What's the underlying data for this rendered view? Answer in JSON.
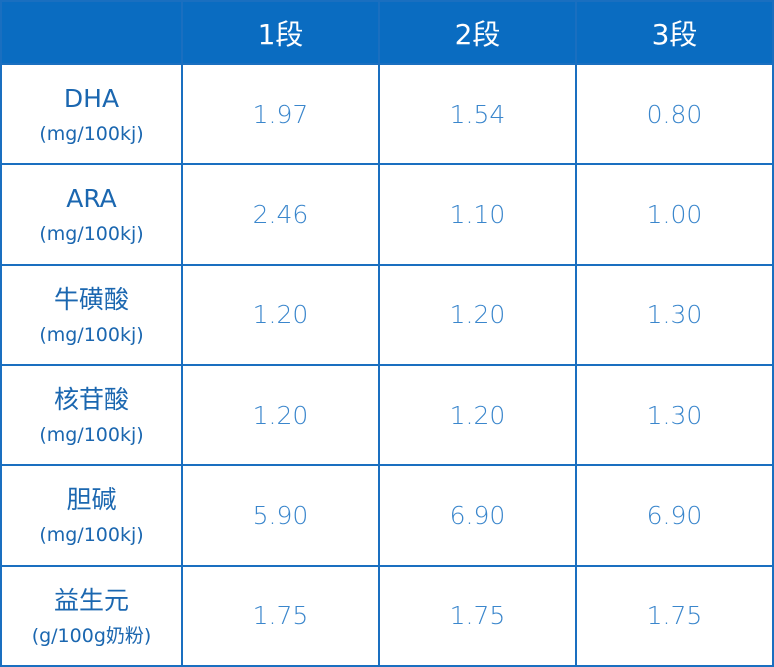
{
  "table": {
    "columns": [
      "1段",
      "2段",
      "3段"
    ],
    "rows": [
      {
        "name": "DHA",
        "unit": "(mg/100kj)",
        "values": [
          "1.97",
          "1.54",
          "0.80"
        ]
      },
      {
        "name": "ARA",
        "unit": "(mg/100kj)",
        "values": [
          "2.46",
          "1.10",
          "1.00"
        ]
      },
      {
        "name": "牛磺酸",
        "unit": "(mg/100kj)",
        "values": [
          "1.20",
          "1.20",
          "1.30"
        ]
      },
      {
        "name": "核苷酸",
        "unit": "(mg/100kj)",
        "values": [
          "1.20",
          "1.20",
          "1.30"
        ]
      },
      {
        "name": "胆碱",
        "unit": "(mg/100kj)",
        "values": [
          "5.90",
          "6.90",
          "6.90"
        ]
      },
      {
        "name": "益生元",
        "unit": "(g/100g奶粉)",
        "values": [
          "1.75",
          "1.75",
          "1.75"
        ]
      }
    ]
  }
}
